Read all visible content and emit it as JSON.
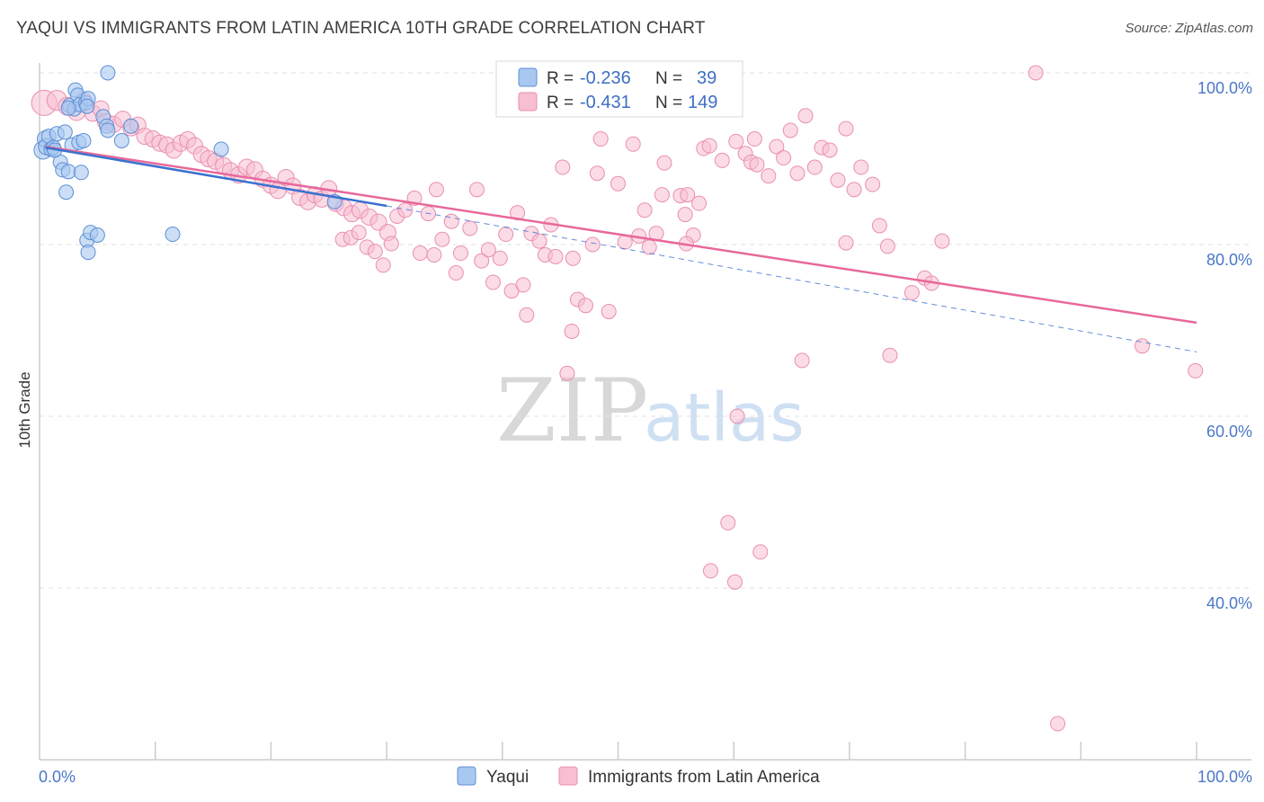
{
  "title": "YAQUI VS IMMIGRANTS FROM LATIN AMERICA 10TH GRADE CORRELATION CHART",
  "source": "Source: ZipAtlas.com",
  "watermark": {
    "zip": "ZIP",
    "atlas": "atlas"
  },
  "colors": {
    "blue_fill": "#a9c8f0",
    "blue_stroke": "#5d8fd6",
    "blue_line": "#3a72cf",
    "pink_fill": "#f8bed2",
    "pink_stroke": "#e98fb0",
    "pink_line": "#e8689a",
    "axis_label": "#4a78c8",
    "grid": "#e2e2e2"
  },
  "legend": {
    "rows": [
      {
        "r_label": "R =",
        "r_value": "-0.236",
        "n_label": "N =",
        "n_value": "39"
      },
      {
        "r_label": "R =",
        "r_value": "-0.431",
        "n_label": "N =",
        "n_value": "149"
      }
    ]
  },
  "bottom_legend": [
    "Yaqui",
    "Immigrants from Latin America"
  ],
  "chart_data": {
    "type": "scatter",
    "title": "YAQUI VS IMMIGRANTS FROM LATIN AMERICA 10TH GRADE CORRELATION CHART",
    "xlabel": "",
    "ylabel": "10th Grade",
    "xlim": [
      0,
      100
    ],
    "ylim": [
      17,
      102.5
    ],
    "x_tick_labels": [
      {
        "value": 0,
        "label": "0.0%"
      },
      {
        "value": 100,
        "label": "100.0%"
      }
    ],
    "y_tick_labels": [
      {
        "value": 100,
        "label": "100.0%"
      },
      {
        "value": 80,
        "label": "80.0%"
      },
      {
        "value": 60,
        "label": "60.0%"
      },
      {
        "value": 40,
        "label": "40.0%"
      }
    ],
    "grid": true,
    "series": [
      {
        "name": "Yaqui",
        "r": -0.236,
        "n": 39,
        "trend": {
          "x": [
            0.5,
            30
          ],
          "y": [
            91.3,
            84.5
          ]
        },
        "trend_dashed": {
          "x": [
            30,
            100
          ],
          "y": [
            84.5,
            67.5
          ]
        },
        "points": [
          [
            0.3,
            91.0,
            10
          ],
          [
            0.5,
            92.3,
            9
          ],
          [
            0.6,
            91.4,
            9
          ],
          [
            0.8,
            92.6,
            8
          ],
          [
            1.0,
            91.1,
            8
          ],
          [
            1.2,
            91.3,
            8
          ],
          [
            1.5,
            92.9,
            8
          ],
          [
            1.8,
            89.6,
            8
          ],
          [
            2.0,
            88.7,
            8
          ],
          [
            2.2,
            93.1,
            8
          ],
          [
            2.3,
            86.1,
            8
          ],
          [
            2.5,
            88.5,
            8
          ],
          [
            2.6,
            96.2,
            8
          ],
          [
            2.8,
            91.6,
            8
          ],
          [
            3.0,
            95.8,
            8
          ],
          [
            3.1,
            98.0,
            8
          ],
          [
            3.3,
            97.4,
            8
          ],
          [
            3.4,
            91.9,
            8
          ],
          [
            3.5,
            96.3,
            8
          ],
          [
            3.6,
            88.4,
            8
          ],
          [
            3.8,
            92.1,
            8
          ],
          [
            4.0,
            96.5,
            8
          ],
          [
            4.2,
            97.0,
            8
          ],
          [
            4.1,
            96.1,
            8
          ],
          [
            4.1,
            80.5,
            8
          ],
          [
            4.2,
            79.1,
            8
          ],
          [
            4.4,
            81.4,
            8
          ],
          [
            5.0,
            81.1,
            8
          ],
          [
            5.5,
            94.9,
            8
          ],
          [
            5.8,
            93.8,
            8
          ],
          [
            5.9,
            93.3,
            8
          ],
          [
            5.9,
            100.0,
            8
          ],
          [
            7.1,
            92.1,
            8
          ],
          [
            7.9,
            93.8,
            8
          ],
          [
            11.5,
            81.2,
            8
          ],
          [
            15.7,
            91.1,
            8
          ],
          [
            25.5,
            85.0,
            8
          ],
          [
            2.5,
            95.9,
            8
          ],
          [
            1.3,
            91.0,
            8
          ]
        ]
      },
      {
        "name": "Immigrants from Latin America",
        "r": -0.431,
        "n": 149,
        "trend": {
          "x": [
            0.5,
            100
          ],
          "y": [
            91.4,
            70.9
          ]
        },
        "points": [
          [
            0.4,
            96.5,
            14
          ],
          [
            1.5,
            96.8,
            11
          ],
          [
            2.4,
            96.1,
            10
          ],
          [
            3.2,
            95.5,
            10
          ],
          [
            3.8,
            96.8,
            9
          ],
          [
            4.6,
            95.3,
            9
          ],
          [
            5.3,
            95.8,
            9
          ],
          [
            5.7,
            94.3,
            9
          ],
          [
            6.4,
            94.0,
            9
          ],
          [
            7.2,
            94.6,
            9
          ],
          [
            7.9,
            93.6,
            9
          ],
          [
            8.5,
            93.9,
            9
          ],
          [
            9.1,
            92.6,
            9
          ],
          [
            9.8,
            92.3,
            9
          ],
          [
            10.4,
            91.8,
            9
          ],
          [
            11.0,
            91.6,
            9
          ],
          [
            11.6,
            91.0,
            9
          ],
          [
            12.2,
            91.8,
            9
          ],
          [
            12.8,
            92.2,
            9
          ],
          [
            13.4,
            91.5,
            9
          ],
          [
            14.0,
            90.5,
            9
          ],
          [
            14.6,
            90.0,
            9
          ],
          [
            15.2,
            89.7,
            9
          ],
          [
            15.9,
            89.2,
            9
          ],
          [
            16.5,
            88.6,
            9
          ],
          [
            17.2,
            88.1,
            9
          ],
          [
            17.9,
            89.0,
            9
          ],
          [
            18.6,
            88.7,
            9
          ],
          [
            19.3,
            87.6,
            9
          ],
          [
            20.0,
            86.9,
            9
          ],
          [
            20.6,
            86.3,
            9
          ],
          [
            21.3,
            87.8,
            9
          ],
          [
            21.9,
            86.8,
            9
          ],
          [
            22.5,
            85.5,
            9
          ],
          [
            23.2,
            85.0,
            9
          ],
          [
            23.8,
            85.8,
            9
          ],
          [
            24.4,
            85.3,
            9
          ],
          [
            25.0,
            86.5,
            9
          ],
          [
            25.6,
            84.8,
            9
          ],
          [
            26.3,
            84.3,
            9
          ],
          [
            27.0,
            83.6,
            9
          ],
          [
            27.7,
            84.0,
            9
          ],
          [
            28.5,
            83.2,
            9
          ],
          [
            29.3,
            82.6,
            9
          ],
          [
            30.1,
            81.4,
            9
          ],
          [
            26.2,
            80.6,
            8
          ],
          [
            26.9,
            80.8,
            8
          ],
          [
            27.6,
            81.4,
            8
          ],
          [
            28.3,
            79.7,
            8
          ],
          [
            29.0,
            79.2,
            8
          ],
          [
            29.7,
            77.6,
            8
          ],
          [
            30.4,
            80.1,
            8
          ],
          [
            30.9,
            83.3,
            8
          ],
          [
            31.6,
            84.0,
            8
          ],
          [
            32.4,
            85.4,
            8
          ],
          [
            32.9,
            79.0,
            8
          ],
          [
            33.6,
            83.6,
            8
          ],
          [
            34.1,
            78.8,
            8
          ],
          [
            34.8,
            80.6,
            8
          ],
          [
            35.6,
            82.7,
            8
          ],
          [
            36.0,
            76.7,
            8
          ],
          [
            36.4,
            79.0,
            8
          ],
          [
            37.2,
            81.9,
            8
          ],
          [
            37.8,
            86.4,
            8
          ],
          [
            38.2,
            78.1,
            8
          ],
          [
            38.8,
            79.4,
            8
          ],
          [
            39.2,
            75.6,
            8
          ],
          [
            39.8,
            78.4,
            8
          ],
          [
            40.3,
            81.2,
            8
          ],
          [
            40.8,
            74.6,
            8
          ],
          [
            41.3,
            83.7,
            8
          ],
          [
            41.8,
            75.3,
            8
          ],
          [
            42.1,
            71.8,
            8
          ],
          [
            42.5,
            81.3,
            8
          ],
          [
            43.2,
            80.4,
            8
          ],
          [
            43.7,
            78.8,
            8
          ],
          [
            44.2,
            82.3,
            8
          ],
          [
            44.6,
            78.6,
            8
          ],
          [
            45.2,
            89.0,
            8
          ],
          [
            45.6,
            65.0,
            8
          ],
          [
            46.0,
            69.9,
            8
          ],
          [
            46.5,
            73.6,
            8
          ],
          [
            47.2,
            72.9,
            8
          ],
          [
            47.8,
            80.0,
            8
          ],
          [
            48.2,
            88.3,
            8
          ],
          [
            48.5,
            92.3,
            8
          ],
          [
            49.2,
            72.2,
            8
          ],
          [
            50.0,
            87.1,
            8
          ],
          [
            50.6,
            80.3,
            8
          ],
          [
            51.3,
            91.7,
            8
          ],
          [
            51.8,
            81.0,
            8
          ],
          [
            52.3,
            84.0,
            8
          ],
          [
            52.7,
            79.7,
            8
          ],
          [
            53.3,
            81.3,
            8
          ],
          [
            53.8,
            85.8,
            8
          ],
          [
            54.0,
            89.5,
            8
          ],
          [
            55.4,
            85.7,
            8
          ],
          [
            55.8,
            83.5,
            8
          ],
          [
            56.0,
            85.8,
            8
          ],
          [
            56.5,
            81.1,
            8
          ],
          [
            57.0,
            84.8,
            8
          ],
          [
            57.4,
            91.2,
            8
          ],
          [
            57.9,
            91.5,
            8
          ],
          [
            59.0,
            89.8,
            8
          ],
          [
            60.2,
            92.0,
            8
          ],
          [
            61.0,
            90.6,
            8
          ],
          [
            61.5,
            89.6,
            8
          ],
          [
            61.8,
            92.3,
            8
          ],
          [
            62.0,
            89.3,
            8
          ],
          [
            63.0,
            88.0,
            8
          ],
          [
            63.7,
            91.4,
            8
          ],
          [
            64.3,
            90.1,
            8
          ],
          [
            64.9,
            93.3,
            8
          ],
          [
            65.5,
            88.3,
            8
          ],
          [
            66.2,
            95.0,
            8
          ],
          [
            67.0,
            89.0,
            8
          ],
          [
            67.6,
            91.3,
            8
          ],
          [
            68.3,
            91.0,
            8
          ],
          [
            69.0,
            87.5,
            8
          ],
          [
            69.7,
            93.5,
            8
          ],
          [
            70.4,
            86.4,
            8
          ],
          [
            71.0,
            89.0,
            8
          ],
          [
            72.0,
            87.0,
            8
          ],
          [
            72.6,
            82.2,
            8
          ],
          [
            73.3,
            79.8,
            8
          ],
          [
            60.3,
            60.0,
            8
          ],
          [
            65.9,
            66.5,
            8
          ],
          [
            58.0,
            42.0,
            8
          ],
          [
            59.5,
            47.6,
            8
          ],
          [
            60.1,
            40.7,
            8
          ],
          [
            62.3,
            44.2,
            8
          ],
          [
            73.5,
            67.1,
            8
          ],
          [
            75.4,
            74.4,
            8
          ],
          [
            76.5,
            76.1,
            8
          ],
          [
            77.1,
            75.5,
            8
          ],
          [
            78.0,
            80.4,
            8
          ],
          [
            86.1,
            100.0,
            8
          ],
          [
            88.0,
            24.2,
            8
          ],
          [
            95.3,
            68.2,
            8
          ],
          [
            99.9,
            65.3,
            8
          ],
          [
            69.7,
            80.2,
            8
          ],
          [
            55.9,
            80.1,
            8
          ],
          [
            34.3,
            86.4,
            8
          ],
          [
            46.1,
            78.4,
            8
          ]
        ]
      }
    ]
  }
}
